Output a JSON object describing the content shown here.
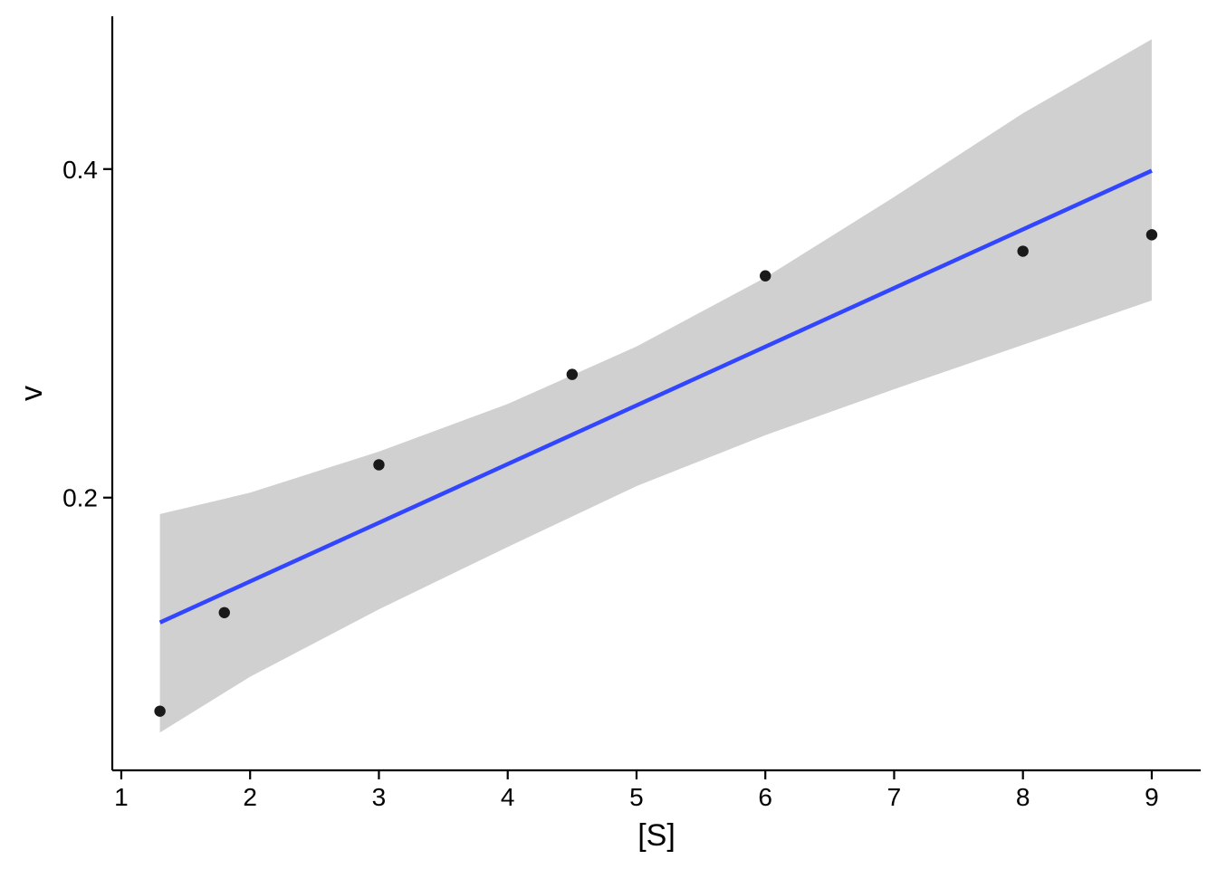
{
  "chart_data": {
    "type": "scatter",
    "title": "",
    "xlabel": "[S]",
    "ylabel": "v",
    "xlim": [
      0.93,
      9.38
    ],
    "ylim": [
      0.034,
      0.493
    ],
    "x_ticks": [
      1,
      2,
      3,
      4,
      5,
      6,
      7,
      8,
      9
    ],
    "x_tick_labels": [
      "1",
      "2",
      "3",
      "4",
      "5",
      "6",
      "7",
      "8",
      "9"
    ],
    "y_ticks": [
      0.2,
      0.4
    ],
    "y_tick_labels": [
      "0.2",
      "0.4"
    ],
    "grid": false,
    "series": [
      {
        "kind": "points",
        "x": [
          1.3,
          1.8,
          3.0,
          4.5,
          6.0,
          8.0,
          9.0
        ],
        "y": [
          0.07,
          0.13,
          0.22,
          0.275,
          0.335,
          0.35,
          0.36
        ]
      },
      {
        "kind": "fit-line",
        "method": "linear",
        "x": [
          1.3,
          9.0
        ],
        "y": [
          0.124,
          0.399
        ]
      },
      {
        "kind": "confidence-band",
        "x": [
          1.3,
          2.0,
          3.0,
          4.0,
          5.0,
          6.0,
          7.0,
          8.0,
          9.0
        ],
        "lower": [
          0.057,
          0.091,
          0.132,
          0.17,
          0.207,
          0.238,
          0.266,
          0.293,
          0.32
        ],
        "upper": [
          0.19,
          0.203,
          0.228,
          0.257,
          0.292,
          0.334,
          0.383,
          0.434,
          0.479
        ]
      }
    ],
    "colors": {
      "points": "#1a1a1a",
      "fit_line": "#3245ff",
      "band": "#d0d0d0"
    }
  }
}
